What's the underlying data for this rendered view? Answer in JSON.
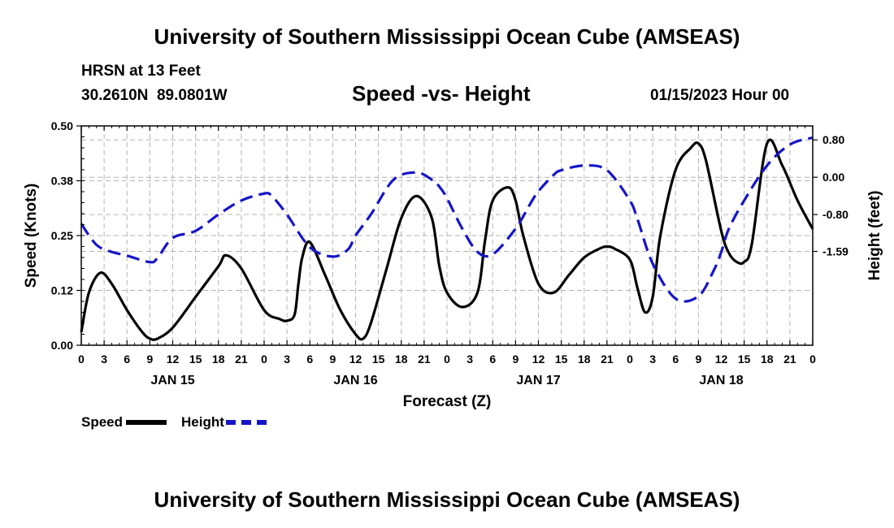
{
  "page": {
    "title": "University of Southern Mississippi Ocean Cube (AMSEAS)",
    "station": "HRSN at 13 Feet",
    "location": "30.2610N  89.0801W",
    "subtitle": "Speed -vs- Height",
    "datetime": "01/15/2023 Hour 00",
    "footer_title": "University of Southern Mississippi Ocean Cube (AMSEAS)"
  },
  "legend": {
    "speed_label": "Speed",
    "height_label": "Height"
  },
  "colors": {
    "speed": "#000000",
    "height": "#1515c8",
    "grid": "#b4b4b4"
  },
  "chart_data": {
    "type": "line",
    "title": "Speed -vs- Height",
    "xlabel": "Forecast (Z)",
    "ylabel": "Speed (Knots)",
    "y2label": "Height (feet)",
    "xlim": [
      0,
      96
    ],
    "ylim": [
      0,
      0.5
    ],
    "y2lim": [
      -3.6,
      1.1
    ],
    "y_ticks": [
      0,
      0.125,
      0.25,
      0.375,
      0.5
    ],
    "y_tick_labels": [
      "0.00",
      "0.12",
      "0.25",
      "0.38",
      "0.50"
    ],
    "y2_ticks": [
      0.8,
      0,
      -0.8,
      -1.59
    ],
    "y2_tick_labels": [
      "0.80",
      "0.00",
      "-0.80",
      "-1.59"
    ],
    "x_ticks": [
      0,
      3,
      6,
      9,
      12,
      15,
      18,
      21,
      24,
      27,
      30,
      33,
      36,
      39,
      42,
      45,
      48,
      51,
      54,
      57,
      60,
      63,
      66,
      69,
      72,
      75,
      78,
      81,
      84,
      87,
      90,
      93,
      96
    ],
    "x_tick_labels": [
      "0",
      "3",
      "6",
      "9",
      "12",
      "15",
      "18",
      "21",
      "0",
      "3",
      "6",
      "9",
      "12",
      "15",
      "18",
      "21",
      "0",
      "3",
      "6",
      "9",
      "12",
      "15",
      "18",
      "21",
      "0",
      "3",
      "6",
      "9",
      "12",
      "15",
      "18",
      "21",
      "0"
    ],
    "day_labels": [
      {
        "label": "JAN 15",
        "x": 12
      },
      {
        "label": "JAN 16",
        "x": 36
      },
      {
        "label": "JAN 17",
        "x": 60
      },
      {
        "label": "JAN 18",
        "x": 84
      }
    ],
    "grid": true,
    "series": [
      {
        "name": "Speed",
        "axis": "left",
        "style": "solid",
        "x": [
          0,
          1,
          2.5,
          4,
          6,
          8,
          9,
          10,
          12,
          15,
          18,
          19,
          21,
          24,
          26,
          27,
          28,
          28.5,
          29,
          30,
          32,
          34,
          36,
          37,
          38,
          40,
          42,
          44,
          46,
          47,
          48,
          50,
          52,
          53,
          54,
          56,
          57,
          58,
          60,
          62,
          64,
          66,
          68,
          69,
          70,
          72,
          73,
          74,
          75,
          76,
          78,
          80,
          81,
          82,
          84,
          85,
          86,
          87,
          88,
          90,
          92,
          94,
          96
        ],
        "values": [
          0.03,
          0.12,
          0.165,
          0.14,
          0.08,
          0.03,
          0.015,
          0.015,
          0.04,
          0.11,
          0.18,
          0.205,
          0.175,
          0.08,
          0.06,
          0.056,
          0.07,
          0.14,
          0.2,
          0.235,
          0.16,
          0.08,
          0.025,
          0.015,
          0.05,
          0.17,
          0.29,
          0.34,
          0.29,
          0.18,
          0.12,
          0.087,
          0.12,
          0.24,
          0.33,
          0.36,
          0.33,
          0.25,
          0.14,
          0.12,
          0.16,
          0.2,
          0.22,
          0.225,
          0.22,
          0.195,
          0.13,
          0.075,
          0.11,
          0.25,
          0.4,
          0.45,
          0.46,
          0.42,
          0.26,
          0.21,
          0.19,
          0.19,
          0.23,
          0.46,
          0.41,
          0.33,
          0.265
        ]
      },
      {
        "name": "Height",
        "axis": "right",
        "style": "dashed",
        "x": [
          0,
          2,
          4,
          6,
          9,
          10,
          12,
          15,
          18,
          21,
          24,
          25,
          27,
          30,
          33,
          35,
          36,
          38,
          41,
          44,
          46,
          47,
          48,
          50,
          52,
          54,
          57,
          59,
          60,
          62,
          63,
          66,
          69,
          72,
          73,
          75,
          78,
          81,
          83,
          84,
          85,
          87,
          90,
          93,
          96
        ],
        "values": [
          -1.0,
          -1.45,
          -1.6,
          -1.68,
          -1.82,
          -1.73,
          -1.3,
          -1.15,
          -0.8,
          -0.5,
          -0.35,
          -0.4,
          -0.8,
          -1.5,
          -1.7,
          -1.55,
          -1.25,
          -0.8,
          -0.05,
          0.1,
          -0.05,
          -0.2,
          -0.45,
          -1.1,
          -1.6,
          -1.65,
          -1.1,
          -0.55,
          -0.3,
          0.05,
          0.15,
          0.25,
          0.15,
          -0.5,
          -0.9,
          -1.85,
          -2.6,
          -2.55,
          -2.0,
          -1.6,
          -1.1,
          -0.5,
          0.25,
          0.7,
          0.85
        ]
      }
    ]
  }
}
